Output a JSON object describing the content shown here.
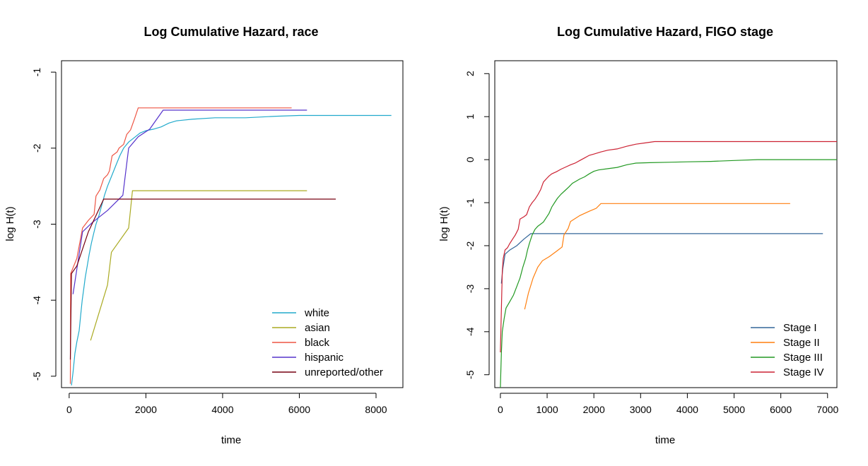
{
  "chart_data": [
    {
      "type": "line",
      "title": "Log Cumulative Hazard, race",
      "xlabel": "time",
      "ylabel": "log H(t)",
      "xlim": [
        -200,
        8700
      ],
      "ylim": [
        -5.15,
        -0.85
      ],
      "xticks": [
        "0",
        "2000",
        "4000",
        "6000",
        "8000"
      ],
      "yticks": [
        "-5",
        "-4",
        "-3",
        "-2",
        "-1"
      ],
      "xtick_values": [
        0,
        2000,
        4000,
        6000,
        8000
      ],
      "ytick_values": [
        -5,
        -4,
        -3,
        -2,
        -1
      ],
      "legend_position": "bottom-right",
      "series": [
        {
          "name": "white",
          "color": "#22aacc",
          "points": [
            [
              60,
              -5.12
            ],
            [
              100,
              -4.95
            ],
            [
              150,
              -4.7
            ],
            [
              200,
              -4.55
            ],
            [
              260,
              -4.4
            ],
            [
              300,
              -4.2
            ],
            [
              340,
              -4.0
            ],
            [
              380,
              -3.85
            ],
            [
              420,
              -3.7
            ],
            [
              470,
              -3.55
            ],
            [
              520,
              -3.4
            ],
            [
              580,
              -3.25
            ],
            [
              640,
              -3.12
            ],
            [
              700,
              -3.0
            ],
            [
              780,
              -2.88
            ],
            [
              850,
              -2.75
            ],
            [
              920,
              -2.62
            ],
            [
              1000,
              -2.5
            ],
            [
              1080,
              -2.4
            ],
            [
              1160,
              -2.3
            ],
            [
              1240,
              -2.2
            ],
            [
              1320,
              -2.1
            ],
            [
              1420,
              -2.0
            ],
            [
              1550,
              -1.92
            ],
            [
              1700,
              -1.86
            ],
            [
              1850,
              -1.8
            ],
            [
              2000,
              -1.77
            ],
            [
              2200,
              -1.75
            ],
            [
              2400,
              -1.72
            ],
            [
              2600,
              -1.67
            ],
            [
              2800,
              -1.64
            ],
            [
              3200,
              -1.62
            ],
            [
              3800,
              -1.6
            ],
            [
              4600,
              -1.6
            ],
            [
              5400,
              -1.58
            ],
            [
              6000,
              -1.57
            ],
            [
              6800,
              -1.57
            ],
            [
              7600,
              -1.57
            ],
            [
              8400,
              -1.57
            ]
          ]
        },
        {
          "name": "asian",
          "color": "#aaaa22",
          "points": [
            [
              560,
              -4.53
            ],
            [
              1000,
              -3.8
            ],
            [
              1100,
              -3.37
            ],
            [
              1550,
              -3.05
            ],
            [
              1650,
              -2.56
            ],
            [
              6200,
              -2.56
            ]
          ]
        },
        {
          "name": "black",
          "color": "#ee5544",
          "points": [
            [
              30,
              -5.1
            ],
            [
              40,
              -3.65
            ],
            [
              200,
              -3.45
            ],
            [
              350,
              -3.05
            ],
            [
              500,
              -2.95
            ],
            [
              650,
              -2.87
            ],
            [
              700,
              -2.63
            ],
            [
              800,
              -2.55
            ],
            [
              900,
              -2.4
            ],
            [
              1000,
              -2.35
            ],
            [
              1050,
              -2.3
            ],
            [
              1120,
              -2.1
            ],
            [
              1250,
              -2.05
            ],
            [
              1300,
              -2.0
            ],
            [
              1420,
              -1.95
            ],
            [
              1500,
              -1.82
            ],
            [
              1600,
              -1.76
            ],
            [
              1700,
              -1.62
            ],
            [
              1800,
              -1.47
            ],
            [
              2400,
              -1.47
            ],
            [
              3500,
              -1.47
            ],
            [
              5800,
              -1.47
            ]
          ]
        },
        {
          "name": "hispanic",
          "color": "#5533cc",
          "points": [
            [
              100,
              -3.92
            ],
            [
              350,
              -3.1
            ],
            [
              600,
              -2.98
            ],
            [
              1000,
              -2.82
            ],
            [
              1400,
              -2.62
            ],
            [
              1550,
              -2.0
            ],
            [
              1800,
              -1.85
            ],
            [
              2100,
              -1.75
            ],
            [
              2450,
              -1.5
            ],
            [
              3500,
              -1.5
            ],
            [
              6200,
              -1.5
            ]
          ]
        },
        {
          "name": "unreported/other",
          "color": "#770011",
          "points": [
            [
              30,
              -4.78
            ],
            [
              60,
              -3.65
            ],
            [
              200,
              -3.55
            ],
            [
              500,
              -3.1
            ],
            [
              900,
              -2.67
            ],
            [
              2000,
              -2.67
            ],
            [
              4500,
              -2.67
            ],
            [
              6950,
              -2.67
            ]
          ]
        }
      ]
    },
    {
      "type": "line",
      "title": "Log Cumulative Hazard, FIGO stage",
      "xlabel": "time",
      "ylabel": "log H(t)",
      "xlim": [
        -120,
        7200
      ],
      "ylim": [
        -5.3,
        2.3
      ],
      "xticks": [
        "0",
        "1000",
        "2000",
        "3000",
        "4000",
        "5000",
        "6000",
        "7000"
      ],
      "yticks": [
        "-5",
        "-4",
        "-3",
        "-2",
        "-1",
        "0",
        "1",
        "2"
      ],
      "xtick_values": [
        0,
        1000,
        2000,
        3000,
        4000,
        5000,
        6000,
        7000
      ],
      "ytick_values": [
        -5,
        -4,
        -3,
        -2,
        -1,
        0,
        1,
        2
      ],
      "legend_position": "bottom-right",
      "series": [
        {
          "name": "Stage I",
          "color": "#336699",
          "points": [
            [
              20,
              -2.88
            ],
            [
              50,
              -2.55
            ],
            [
              100,
              -2.2
            ],
            [
              200,
              -2.1
            ],
            [
              350,
              -2.0
            ],
            [
              500,
              -1.85
            ],
            [
              650,
              -1.72
            ],
            [
              1000,
              -1.72
            ],
            [
              3000,
              -1.72
            ],
            [
              6900,
              -1.72
            ]
          ]
        },
        {
          "name": "Stage II",
          "color": "#ff7f0e",
          "points": [
            [
              520,
              -3.48
            ],
            [
              600,
              -3.1
            ],
            [
              700,
              -2.75
            ],
            [
              800,
              -2.5
            ],
            [
              900,
              -2.35
            ],
            [
              1050,
              -2.25
            ],
            [
              1200,
              -2.13
            ],
            [
              1320,
              -2.03
            ],
            [
              1360,
              -1.75
            ],
            [
              1450,
              -1.6
            ],
            [
              1500,
              -1.44
            ],
            [
              1700,
              -1.3
            ],
            [
              1900,
              -1.2
            ],
            [
              2050,
              -1.13
            ],
            [
              2150,
              -1.02
            ],
            [
              3000,
              -1.02
            ],
            [
              4500,
              -1.02
            ],
            [
              6200,
              -1.02
            ]
          ]
        },
        {
          "name": "Stage III",
          "color": "#229922",
          "points": [
            [
              0,
              -5.3
            ],
            [
              20,
              -4.5
            ],
            [
              40,
              -4.0
            ],
            [
              80,
              -3.7
            ],
            [
              120,
              -3.45
            ],
            [
              200,
              -3.3
            ],
            [
              280,
              -3.15
            ],
            [
              350,
              -2.95
            ],
            [
              420,
              -2.75
            ],
            [
              480,
              -2.5
            ],
            [
              540,
              -2.3
            ],
            [
              580,
              -2.1
            ],
            [
              620,
              -1.95
            ],
            [
              680,
              -1.75
            ],
            [
              740,
              -1.62
            ],
            [
              800,
              -1.55
            ],
            [
              860,
              -1.5
            ],
            [
              920,
              -1.45
            ],
            [
              980,
              -1.35
            ],
            [
              1040,
              -1.25
            ],
            [
              1100,
              -1.1
            ],
            [
              1160,
              -1.0
            ],
            [
              1220,
              -0.9
            ],
            [
              1300,
              -0.8
            ],
            [
              1380,
              -0.72
            ],
            [
              1460,
              -0.64
            ],
            [
              1540,
              -0.55
            ],
            [
              1620,
              -0.5
            ],
            [
              1700,
              -0.45
            ],
            [
              1800,
              -0.4
            ],
            [
              1900,
              -0.33
            ],
            [
              2000,
              -0.27
            ],
            [
              2100,
              -0.24
            ],
            [
              2300,
              -0.21
            ],
            [
              2500,
              -0.18
            ],
            [
              2700,
              -0.12
            ],
            [
              2900,
              -0.08
            ],
            [
              3200,
              -0.07
            ],
            [
              3600,
              -0.06
            ],
            [
              4000,
              -0.05
            ],
            [
              4500,
              -0.04
            ],
            [
              5000,
              -0.02
            ],
            [
              5500,
              0.0
            ],
            [
              6500,
              0.0
            ],
            [
              7200,
              0.0
            ]
          ]
        },
        {
          "name": "Stage IV",
          "color": "#cc2233",
          "points": [
            [
              0,
              -4.48
            ],
            [
              20,
              -3.5
            ],
            [
              40,
              -2.6
            ],
            [
              60,
              -2.3
            ],
            [
              100,
              -2.1
            ],
            [
              150,
              -2.05
            ],
            [
              200,
              -1.95
            ],
            [
              260,
              -1.85
            ],
            [
              320,
              -1.75
            ],
            [
              380,
              -1.62
            ],
            [
              420,
              -1.38
            ],
            [
              500,
              -1.33
            ],
            [
              560,
              -1.28
            ],
            [
              620,
              -1.1
            ],
            [
              680,
              -1.0
            ],
            [
              740,
              -0.92
            ],
            [
              800,
              -0.82
            ],
            [
              860,
              -0.7
            ],
            [
              920,
              -0.52
            ],
            [
              980,
              -0.45
            ],
            [
              1040,
              -0.38
            ],
            [
              1100,
              -0.33
            ],
            [
              1200,
              -0.28
            ],
            [
              1300,
              -0.22
            ],
            [
              1400,
              -0.17
            ],
            [
              1500,
              -0.12
            ],
            [
              1600,
              -0.08
            ],
            [
              1700,
              -0.02
            ],
            [
              1800,
              0.04
            ],
            [
              1900,
              0.1
            ],
            [
              2000,
              0.13
            ],
            [
              2150,
              0.18
            ],
            [
              2300,
              0.22
            ],
            [
              2500,
              0.25
            ],
            [
              2700,
              0.31
            ],
            [
              2900,
              0.36
            ],
            [
              3100,
              0.39
            ],
            [
              3300,
              0.42
            ],
            [
              3500,
              0.42
            ],
            [
              5000,
              0.42
            ],
            [
              7200,
              0.42
            ]
          ]
        }
      ]
    }
  ]
}
